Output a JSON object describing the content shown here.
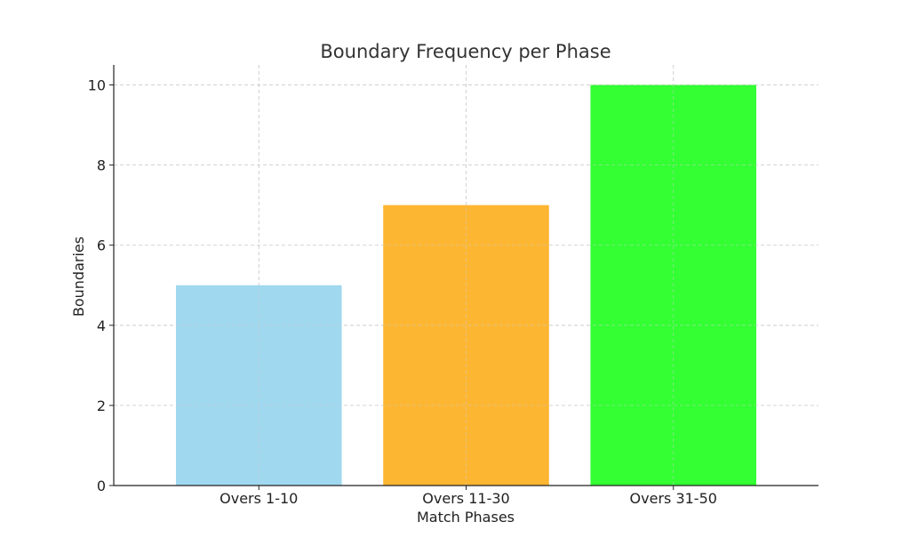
{
  "chart_data": {
    "type": "bar",
    "title": "Boundary Frequency per Phase",
    "xlabel": "Match Phases",
    "ylabel": "Boundaries",
    "categories": [
      "Overs 1-10",
      "Overs 11-30",
      "Overs 31-50"
    ],
    "values": [
      5,
      7,
      10
    ],
    "colors": [
      "#a0d8ef",
      "#fdb632",
      "#33ff33"
    ],
    "ylim": [
      0,
      10.5
    ],
    "yticks": [
      0,
      2,
      4,
      6,
      8,
      10
    ],
    "grid": true
  }
}
